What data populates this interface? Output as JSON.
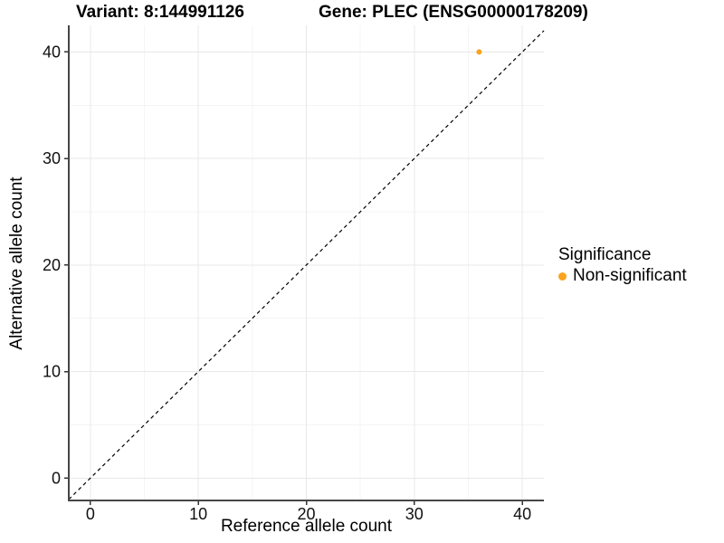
{
  "figure": {
    "background": "#FFFFFF"
  },
  "chart_data": {
    "type": "scatter",
    "title_left": "Variant: 8:144991126",
    "title_right": "Gene: PLEC (ENSG00000178209)",
    "xlabel": "Reference allele count",
    "ylabel": "Alternative allele count",
    "xlim": [
      -2,
      42
    ],
    "ylim": [
      -2.1,
      42.5
    ],
    "x_ticks": [
      0,
      10,
      20,
      30,
      40
    ],
    "y_ticks": [
      0,
      10,
      20,
      30,
      40
    ],
    "minor_ticks_x": [
      5,
      15,
      25,
      35
    ],
    "minor_ticks_y": [
      5,
      15,
      25,
      35
    ],
    "grid": "major+minor",
    "identity_line": {
      "equation": "y = x",
      "style": "dashed",
      "color": "#000000"
    },
    "series": [
      {
        "name": "Non-significant",
        "color": "#FBA31E",
        "point_radius": 3,
        "points": [
          {
            "x": 36,
            "y": 40
          }
        ]
      }
    ],
    "legend": {
      "title": "Significance",
      "position": "right",
      "items": [
        {
          "label": "Non-significant",
          "color": "#FBA31E"
        }
      ]
    },
    "colors": {
      "grid_major": "#E8E8E8",
      "grid_minor": "#F4F4F4",
      "axis_line": "#464646",
      "tick_mark": "#333333",
      "tick_label": "#111111"
    }
  }
}
